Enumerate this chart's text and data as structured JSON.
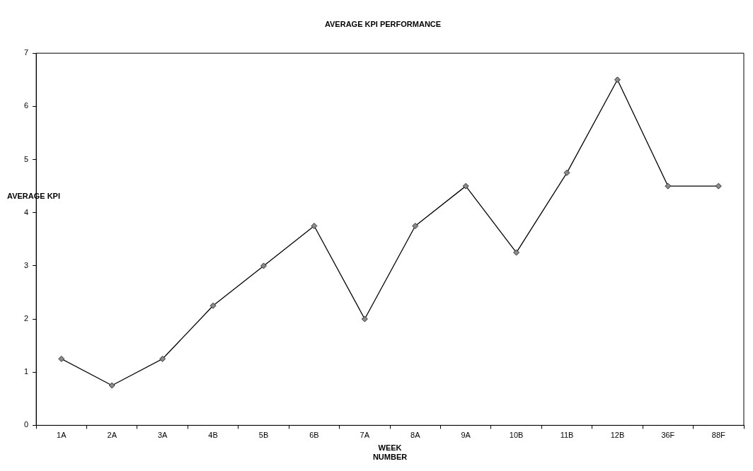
{
  "chart_data": {
    "type": "line",
    "title": "AVERAGE KPI PERFORMANCE",
    "xlabel": "WEEK NUMBER",
    "ylabel": "AVERAGE KPI",
    "categories": [
      "1A",
      "2A",
      "3A",
      "4B",
      "5B",
      "6B",
      "7A",
      "8A",
      "9A",
      "10B",
      "11B",
      "12B",
      "36F",
      "88F"
    ],
    "series": [
      {
        "color": "#000000",
        "values": [
          1.25,
          0.75,
          1.25,
          2.25,
          3,
          3.75,
          2,
          3.75,
          4.5,
          3.25,
          4.75,
          6.5,
          4.5,
          4.5
        ]
      }
    ],
    "ylim": [
      0,
      7
    ],
    "yticks": [
      0,
      1,
      2,
      3,
      4,
      5,
      6,
      7
    ],
    "grid": false,
    "legend": false,
    "marker": "diamond",
    "line_style": "solid"
  }
}
